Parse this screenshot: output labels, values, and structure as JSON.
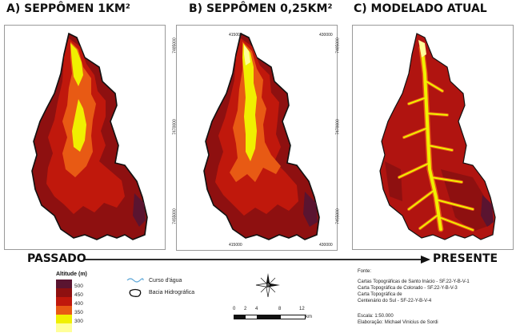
{
  "panels": [
    {
      "title": "A) SEPPÔMEN 1KM²",
      "coords": []
    },
    {
      "title": "B) SEPPÔMEN 0,25KM²",
      "coords": [
        "415000",
        "430000",
        "415000",
        "430000",
        "7485000",
        "7470000",
        "7485000",
        "7470000",
        "7455000",
        "7455000"
      ]
    },
    {
      "title": "C) MODELADO ATUAL",
      "coords": []
    }
  ],
  "timeline": {
    "start": "PASSADO",
    "end": "PRESENTE"
  },
  "legend": {
    "title": "Altitude (m)",
    "classes": [
      {
        "label": "500",
        "color": "#5a1430"
      },
      {
        "label": "450",
        "color": "#8e1010"
      },
      {
        "label": "400",
        "color": "#c0180c"
      },
      {
        "label": "350",
        "color": "#e85a14"
      },
      {
        "label": "300",
        "color": "#f0f000"
      },
      {
        "label": "",
        "color": "#ffff99"
      }
    ],
    "stream": "Curso d'água",
    "basin": "Bacia Hidrográfica"
  },
  "scale_bar": {
    "ticks": [
      "0",
      "2",
      "4",
      "8",
      "12"
    ],
    "unit": "km"
  },
  "source": {
    "heading": "Fonte:",
    "lines": [
      "Cartas Topográficas de Santo Inácio  - SF.22-Y-B-V-1",
      "Carta Topográfica de Colorado  - SF.22-Y-B-V-3",
      "Carta Topográfica de",
      "Centenário do Sul - SF-22-Y-B-V-4"
    ],
    "scale": "Escala: 1:50.000",
    "author": "Elaboração: Michael Vinicius de Sordi"
  }
}
